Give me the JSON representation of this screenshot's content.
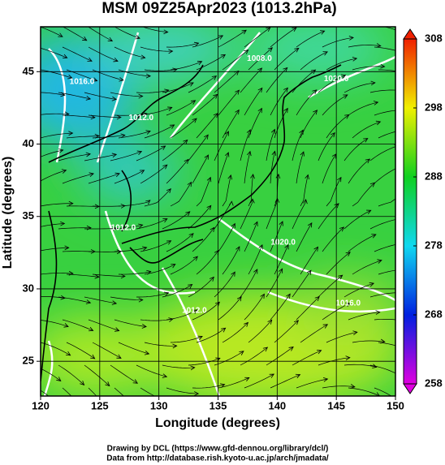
{
  "title": "MSM 09Z25Apr2023 (1013.2hPa)",
  "map": {
    "xlim": [
      120,
      150
    ],
    "ylim": [
      22.6,
      48.1
    ],
    "xticks": [
      120,
      125,
      130,
      135,
      140,
      145,
      150
    ],
    "yticks": [
      25,
      30,
      35,
      40,
      45
    ],
    "x_label": "Longitude (degrees)",
    "y_label": "Latitude  (degrees)",
    "grid": true,
    "contour_labels": [
      {
        "label": "1016.0",
        "lon": 123.5,
        "lat": 44.3
      },
      {
        "label": "1012.0",
        "lon": 128.5,
        "lat": 41.8
      },
      {
        "label": "1008.0",
        "lon": 138.5,
        "lat": 45.9
      },
      {
        "label": "1020.0",
        "lon": 145,
        "lat": 44.5
      },
      {
        "label": "1012.0",
        "lon": 127,
        "lat": 34.2
      },
      {
        "label": "1020.0",
        "lon": 140.5,
        "lat": 33.2
      },
      {
        "label": "1012.0",
        "lon": 133,
        "lat": 28.5
      },
      {
        "label": "1016.0",
        "lon": 146,
        "lat": 29
      }
    ]
  },
  "colorbar": {
    "lim": [
      258,
      308
    ],
    "ticks": [
      258,
      268,
      278,
      288,
      298,
      308
    ],
    "colors": [
      "#e000e0",
      "#0020e0",
      "#10d8f0",
      "#10d020",
      "#f0f000",
      "#f02000"
    ]
  },
  "footer": [
    "Drawing by DCL (https://www.gfd-dennou.org/library/dcl/)",
    "Data from http://database.rish.kyoto-u.ac.jp/arch/jmadata/"
  ]
}
